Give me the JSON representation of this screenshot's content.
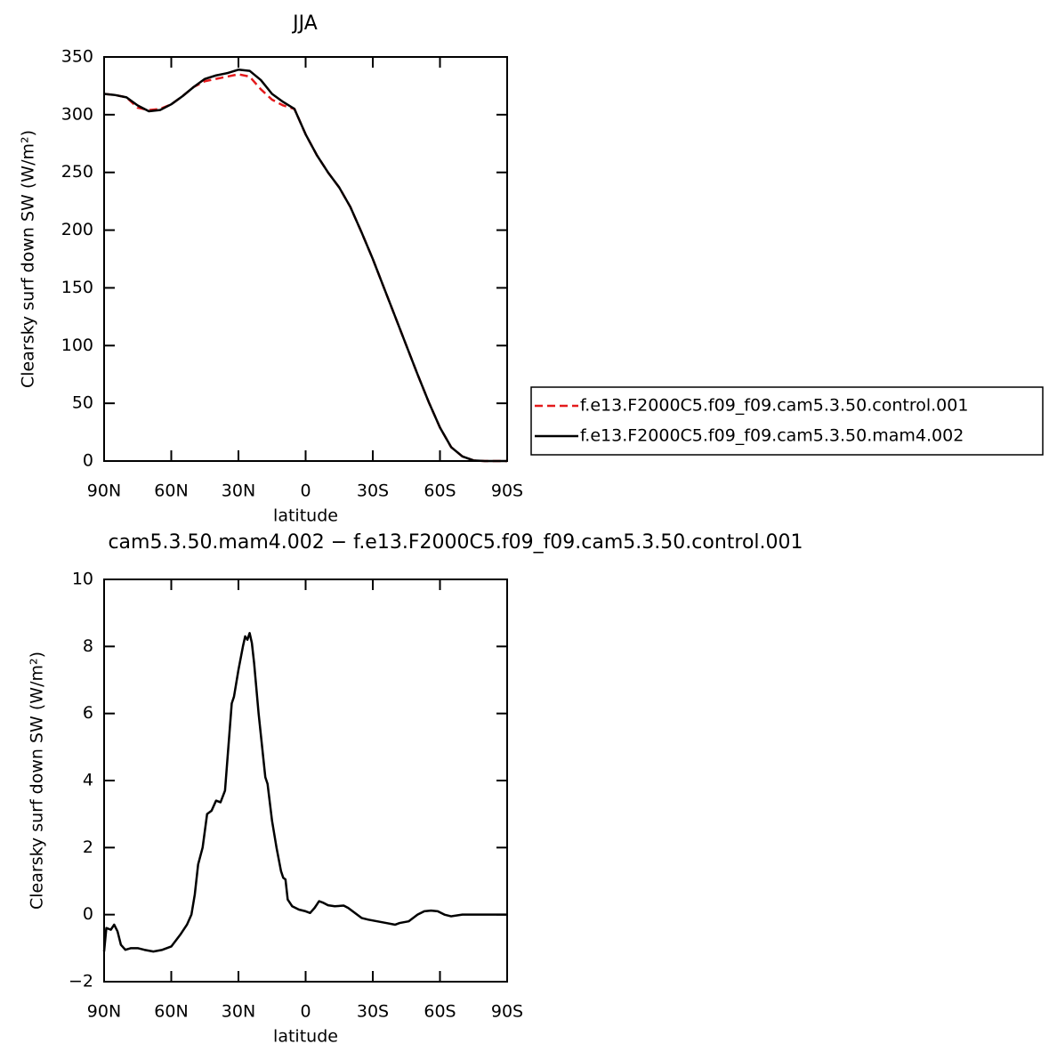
{
  "chart_data": [
    {
      "type": "line",
      "title": "JJA",
      "xlabel": "latitude",
      "ylabel": "Clearsky surf down SW (W/m²)",
      "x": [
        90,
        85,
        80,
        75,
        70,
        65,
        60,
        55,
        50,
        45,
        40,
        35,
        30,
        25,
        20,
        15,
        10,
        5,
        0,
        -5,
        -10,
        -15,
        -20,
        -25,
        -30,
        -35,
        -40,
        -45,
        -50,
        -55,
        -60,
        -65,
        -70,
        -75,
        -80,
        -85,
        -90
      ],
      "series": [
        {
          "name": "f.e13.F2000C5.f09_f09.cam5.3.50.control.001",
          "color": "#e41a1c",
          "dashed": true,
          "values": [
            318,
            317,
            315,
            306,
            304,
            305,
            309,
            316,
            324,
            329,
            331,
            333,
            335,
            333,
            322,
            313,
            308,
            305,
            283,
            265,
            250,
            237,
            220,
            198,
            175,
            150,
            125,
            100,
            75,
            51,
            29,
            12,
            4,
            0.5,
            0,
            0,
            0
          ]
        },
        {
          "name": "f.e13.F2000C5.f09_f09.cam5.3.50.mam4.002",
          "color": "#000000",
          "dashed": false,
          "values": [
            318,
            317,
            315,
            308,
            303,
            304,
            309,
            316,
            324,
            331,
            334,
            336,
            339,
            338,
            330,
            318,
            311,
            305,
            283,
            265,
            250,
            237,
            220,
            198,
            175,
            150,
            125,
            100,
            75,
            51,
            29,
            12,
            4,
            0.5,
            0,
            0,
            0
          ]
        }
      ],
      "xlim": [
        90,
        -90
      ],
      "xticks": [
        {
          "value": 90,
          "label": "90N"
        },
        {
          "value": 60,
          "label": "60N"
        },
        {
          "value": 30,
          "label": "30N"
        },
        0,
        {
          "value": -30,
          "label": "30S"
        },
        {
          "value": -60,
          "label": "60S"
        },
        {
          "value": -90,
          "label": "90S"
        }
      ],
      "ylim": [
        0,
        350
      ],
      "yticks": [
        0,
        50,
        100,
        150,
        200,
        250,
        300,
        350
      ],
      "legend": "right"
    },
    {
      "type": "line",
      "title": "cam5.3.50.mam4.002 − f.e13.F2000C5.f09_f09.cam5.3.50.control.001",
      "xlabel": "latitude",
      "ylabel": "Clearsky surf down SW (W/m²)",
      "x": [
        90,
        89,
        87,
        85.5,
        84,
        82.5,
        80.5,
        78,
        75,
        72,
        68,
        64,
        60,
        56,
        53,
        51,
        49.5,
        48,
        46,
        44,
        42,
        40,
        38,
        36,
        33,
        32,
        30,
        28,
        27,
        26,
        25,
        24,
        23,
        21,
        18,
        17,
        15,
        13,
        11,
        10,
        9,
        8,
        6,
        3,
        0,
        -2,
        -4,
        -6,
        -8,
        -10,
        -13,
        -17,
        -19,
        -22,
        -25,
        -28,
        -32,
        -36,
        -40,
        -42,
        -46,
        -50,
        -53,
        -56,
        -59,
        -62,
        -65,
        -70,
        -80,
        -90
      ],
      "values": [
        -1.1,
        -0.4,
        -0.45,
        -0.3,
        -0.5,
        -0.9,
        -1.05,
        -1.0,
        -1.0,
        -1.05,
        -1.1,
        -1.05,
        -0.95,
        -0.6,
        -0.3,
        0,
        0.6,
        1.5,
        2.0,
        3.0,
        3.1,
        3.4,
        3.35,
        3.7,
        6.3,
        6.5,
        7.3,
        8.0,
        8.3,
        8.2,
        8.4,
        8.1,
        7.5,
        6.0,
        4.1,
        3.9,
        2.8,
        2.0,
        1.3,
        1.1,
        1.05,
        0.45,
        0.25,
        0.15,
        0.1,
        0.05,
        0.2,
        0.4,
        0.35,
        0.28,
        0.25,
        0.27,
        0.2,
        0.05,
        -0.1,
        -0.15,
        -0.2,
        -0.25,
        -0.3,
        -0.25,
        -0.2,
        0,
        0.1,
        0.12,
        0.1,
        0,
        -0.05,
        0,
        0,
        0
      ],
      "color": "#000000",
      "xlim": [
        90,
        -90
      ],
      "xticks": [
        {
          "value": 90,
          "label": "90N"
        },
        {
          "value": 60,
          "label": "60N"
        },
        {
          "value": 30,
          "label": "30N"
        },
        0,
        {
          "value": -30,
          "label": "30S"
        },
        {
          "value": -60,
          "label": "60S"
        },
        {
          "value": -90,
          "label": "90S"
        }
      ],
      "ylim": [
        -2,
        10
      ],
      "yticks": [
        {
          "value": -2,
          "label": "−2"
        },
        0,
        2,
        4,
        6,
        8,
        10
      ]
    }
  ]
}
